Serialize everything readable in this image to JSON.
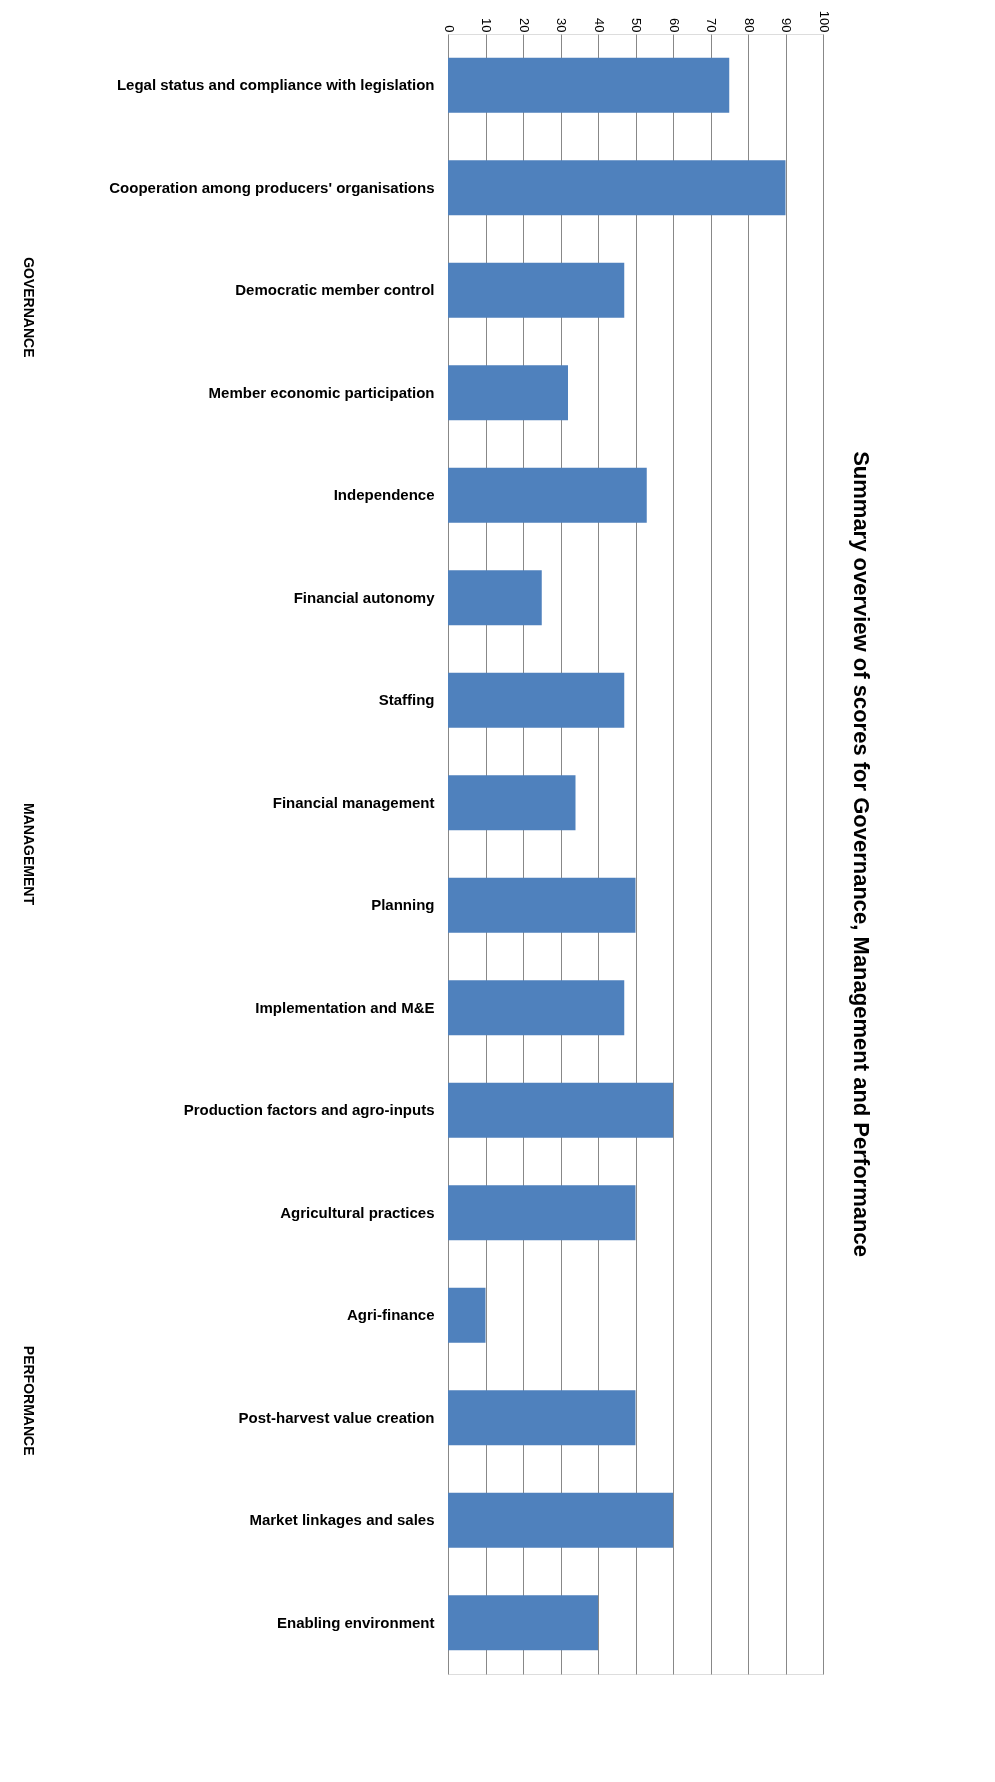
{
  "chart_data": {
    "type": "bar",
    "orientation": "horizontal",
    "title": "Summary overview of scores for Governance, Management and Performance",
    "categories": [
      "Legal status and compliance with legislation",
      "Cooperation among producers' organisations",
      "Democratic member control",
      "Member economic participation",
      "Independence",
      "Financial autonomy",
      "Staffing",
      "Financial management",
      "Planning",
      "Implementation and M&E",
      "Production factors and agro-inputs",
      "Agricultural practices",
      "Agri-finance",
      "Post-harvest value creation",
      "Market linkages and sales",
      "Enabling environment"
    ],
    "values": [
      75,
      90,
      47,
      32,
      53,
      25,
      47,
      34,
      50,
      47,
      60,
      50,
      10,
      50,
      60,
      40
    ],
    "color": "#4f81bd",
    "xlim": [
      0,
      100
    ],
    "xticks": [
      0,
      10,
      20,
      30,
      40,
      50,
      60,
      70,
      80,
      90,
      100
    ],
    "grid": "x",
    "annotations": [
      "GOVERNANCE",
      "MANAGEMENT",
      "PERFORMANCE"
    ]
  }
}
